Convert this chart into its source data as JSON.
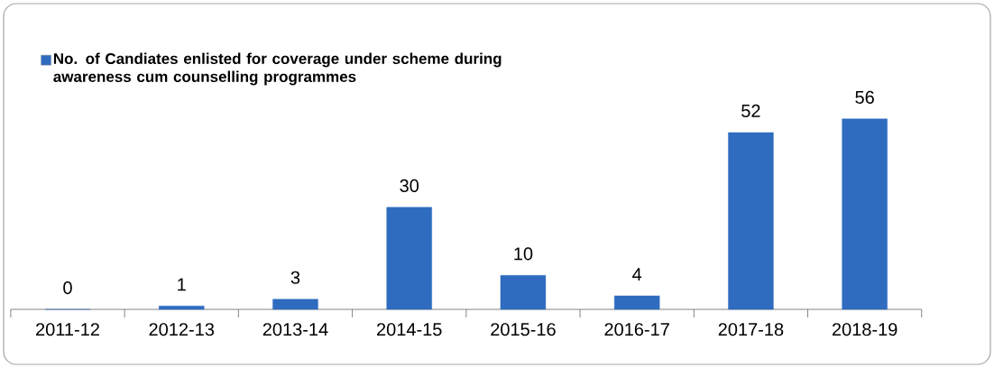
{
  "chart_data": {
    "type": "bar",
    "categories": [
      "2011-12",
      "2012-13",
      "2013-14",
      "2014-15",
      "2015-16",
      "2016-17",
      "2017-18",
      "2018-19"
    ],
    "series": [
      {
        "name": "No. of Candiates enlisted for coverage under scheme during awareness cum counselling programmes",
        "color": "#2f6cc0",
        "values": [
          0,
          1,
          3,
          30,
          10,
          4,
          52,
          56
        ]
      }
    ],
    "data_labels": true,
    "legend": "top left"
  }
}
